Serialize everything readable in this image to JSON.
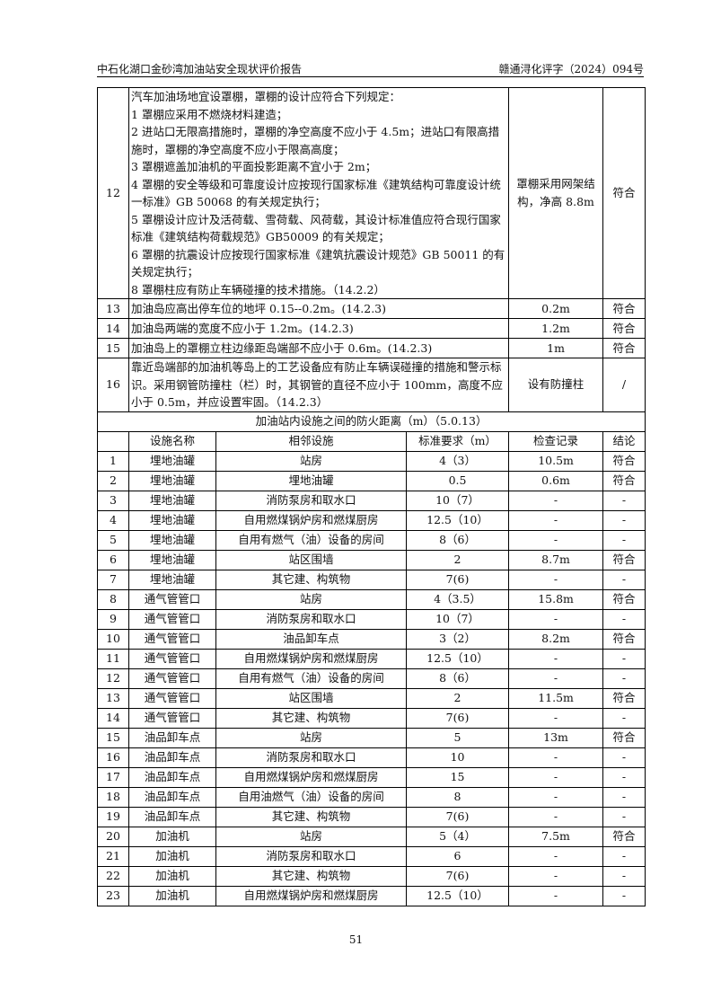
{
  "header": {
    "title": "中石化湖口金砂湾加油站安全现状评价报告",
    "doc_no": "赣通浔化评字（2024）094号"
  },
  "upper_rows": [
    {
      "no": "12",
      "lines": [
        "汽车加油场地宜设罩棚，罩棚的设计应符合下列规定：",
        "1 罩棚应采用不燃烧材料建造；",
        "2  进站口无限高措施时，罩棚的净空高度不应小于 4.5m；进站口有限高措施时，罩棚的净空高度不应小于限高高度；",
        "3 罩棚遮盖加油机的平面投影距离不宜小于 2m；",
        "4 罩棚的安全等级和可靠度设计应按现行国家标准《建筑结构可靠度设计统一标准》GB 50068 的有关规定执行；",
        "5  罩棚设计应计及活荷载、雪荷载、风荷载，其设计标准值应符合现行国家标准《建筑结构荷载规范》GB50009 的有关规定；",
        "6  罩棚的抗震设计应按现行国家标准《建筑抗震设计规范》GB 50011 的有关规定执行；",
        "8  罩棚柱应有防止车辆碰撞的技术措施。（14.2.2）"
      ],
      "record": "罩棚采用网架结构，净高 8.8m",
      "result": "符合"
    },
    {
      "no": "13",
      "lines": [
        "加油岛应高出停车位的地坪 0.15--0.2m。(14.2.3)"
      ],
      "record": "0.2m",
      "result": "符合"
    },
    {
      "no": "14",
      "lines": [
        "加油岛两端的宽度不应小于 1.2m。(14.2.3)"
      ],
      "record": "1.2m",
      "result": "符合"
    },
    {
      "no": "15",
      "lines": [
        "加油岛上的罩棚立柱边缘距岛端部不应小于 0.6m。(14.2.3)"
      ],
      "record": "1m",
      "result": "符合"
    },
    {
      "no": "16",
      "lines": [
        "靠近岛端部的加油机等岛上的工艺设备应有防止车辆误碰撞的措施和警示标识。采用钢管防撞柱（栏）时，其钢管的直径不应小于 100mm，高度不应小于 0.5m，并应设置牢固。（14.2.3）"
      ],
      "record": "设有防撞柱",
      "result": "/"
    }
  ],
  "section_title": "加油站内设施之间的防火距离（m）（5.0.13）",
  "columns": [
    "",
    "设施名称",
    "相邻设施",
    "标准要求（m）",
    "检查记录",
    "结论"
  ],
  "rows": [
    [
      "1",
      "埋地油罐",
      "站房",
      "4（3）",
      "10.5m",
      "符合"
    ],
    [
      "2",
      "埋地油罐",
      "埋地油罐",
      "0.5",
      "0.6m",
      "符合"
    ],
    [
      "3",
      "埋地油罐",
      "消防泵房和取水口",
      "10（7）",
      "-",
      "-"
    ],
    [
      "4",
      "埋地油罐",
      "自用燃煤锅炉房和燃煤厨房",
      "12.5（10）",
      "-",
      "-"
    ],
    [
      "5",
      "埋地油罐",
      "自用有燃气（油）设备的房间",
      "8（6）",
      "-",
      "-"
    ],
    [
      "6",
      "埋地油罐",
      "站区围墙",
      "2",
      "8.7m",
      "符合"
    ],
    [
      "7",
      "埋地油罐",
      "其它建、构筑物",
      "7(6)",
      "-",
      "-"
    ],
    [
      "8",
      "通气管管口",
      "站房",
      "4（3.5）",
      "15.8m",
      "符合"
    ],
    [
      "9",
      "通气管管口",
      "消防泵房和取水口",
      "10（7）",
      "-",
      "-"
    ],
    [
      "10",
      "通气管管口",
      "油品卸车点",
      "3（2）",
      "8.2m",
      "符合"
    ],
    [
      "11",
      "通气管管口",
      "自用燃煤锅炉房和燃煤厨房",
      "12.5（10）",
      "-",
      "-"
    ],
    [
      "12",
      "通气管管口",
      "自用有燃气（油）设备的房间",
      "8（6）",
      "-",
      "-"
    ],
    [
      "13",
      "通气管管口",
      "站区围墙",
      "2",
      "11.5m",
      "符合"
    ],
    [
      "14",
      "通气管管口",
      "其它建、构筑物",
      "7(6)",
      "-",
      "-"
    ],
    [
      "15",
      "油品卸车点",
      "站房",
      "5",
      "13m",
      "符合"
    ],
    [
      "16",
      "油品卸车点",
      "消防泵房和取水口",
      "10",
      "-",
      "-"
    ],
    [
      "17",
      "油品卸车点",
      "自用燃煤锅炉房和燃煤厨房",
      "15",
      "-",
      "-"
    ],
    [
      "18",
      "油品卸车点",
      "自用油燃气（油）设备的房间",
      "8",
      "-",
      "-"
    ],
    [
      "19",
      "油品卸车点",
      "其它建、构筑物",
      "7(6)",
      "-",
      "-"
    ],
    [
      "20",
      "加油机",
      "站房",
      "5（4）",
      "7.5m",
      "符合"
    ],
    [
      "21",
      "加油机",
      "消防泵房和取水口",
      "6",
      "-",
      "-"
    ],
    [
      "22",
      "加油机",
      "其它建、构筑物",
      "7(6)",
      "-",
      "-"
    ],
    [
      "23",
      "加油机",
      "自用燃煤锅炉房和燃煤厨房",
      "12.5（10）",
      "-",
      "-"
    ]
  ],
  "page_number": "51"
}
